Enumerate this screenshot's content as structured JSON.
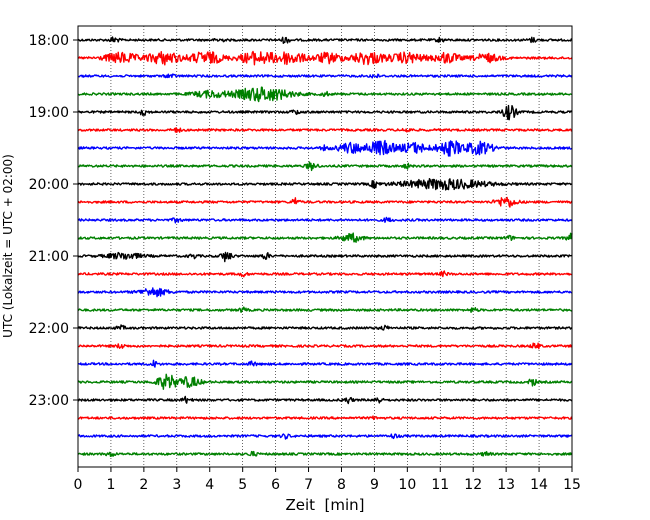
{
  "chart_data": {
    "type": "line",
    "title": "",
    "xlabel": "Zeit  [min]",
    "ylabel": "UTC (Lokalzeit = UTC + 02:00)",
    "xlim": [
      0,
      15
    ],
    "x_ticks": [
      0,
      1,
      2,
      3,
      4,
      5,
      6,
      7,
      8,
      9,
      10,
      11,
      12,
      13,
      14,
      15
    ],
    "y_ticks": [
      "18:00",
      "19:00",
      "20:00",
      "21:00",
      "22:00",
      "23:00"
    ],
    "trace_interval_min": 15,
    "grid": "vertical dotted at each minute",
    "colors": [
      "#000000",
      "#ff0000",
      "#0000ff",
      "#008000"
    ],
    "traces": [
      {
        "start": "18:00",
        "events": [
          {
            "t": 1.1,
            "amp": 3
          },
          {
            "t": 4.3,
            "amp": 2
          },
          {
            "t": 6.3,
            "amp": 3
          },
          {
            "t": 11.0,
            "amp": 2
          },
          {
            "t": 13.8,
            "amp": 2
          }
        ]
      },
      {
        "start": "18:15",
        "events": [
          {
            "t": 1.3,
            "amp": 5,
            "w": 0.5
          },
          {
            "t": 2.6,
            "amp": 6,
            "w": 0.5
          },
          {
            "t": 3.9,
            "amp": 6,
            "w": 0.5
          },
          {
            "t": 5.4,
            "amp": 6,
            "w": 0.5
          },
          {
            "t": 6.4,
            "amp": 6,
            "w": 0.5
          },
          {
            "t": 7.6,
            "amp": 5,
            "w": 0.4
          },
          {
            "t": 8.8,
            "amp": 6,
            "w": 0.5
          },
          {
            "t": 10.0,
            "amp": 5,
            "w": 0.5
          },
          {
            "t": 11.2,
            "amp": 5,
            "w": 0.4
          },
          {
            "t": 12.4,
            "amp": 4,
            "w": 0.4
          }
        ]
      },
      {
        "start": "18:30",
        "events": [
          {
            "t": 2.8,
            "amp": 2
          },
          {
            "t": 9.0,
            "amp": 2
          }
        ]
      },
      {
        "start": "18:45",
        "events": [
          {
            "t": 4.0,
            "amp": 3,
            "w": 0.5
          },
          {
            "t": 5.6,
            "amp": 7,
            "w": 0.8
          },
          {
            "t": 7.5,
            "amp": 2
          }
        ]
      },
      {
        "start": "19:00",
        "events": [
          {
            "t": 2.0,
            "amp": 3
          },
          {
            "t": 6.6,
            "amp": 2
          },
          {
            "t": 13.1,
            "amp": 7,
            "w": 0.2
          }
        ]
      },
      {
        "start": "19:15",
        "events": [
          {
            "t": 3.0,
            "amp": 2
          },
          {
            "t": 10.0,
            "amp": 2
          }
        ]
      },
      {
        "start": "19:30",
        "events": [
          {
            "t": 7.5,
            "amp": 2
          },
          {
            "t": 8.3,
            "amp": 5,
            "w": 0.4
          },
          {
            "t": 9.2,
            "amp": 7,
            "w": 0.4
          },
          {
            "t": 10.2,
            "amp": 5,
            "w": 0.4
          },
          {
            "t": 11.3,
            "amp": 7,
            "w": 0.4
          },
          {
            "t": 12.2,
            "amp": 6,
            "w": 0.4
          }
        ]
      },
      {
        "start": "19:45",
        "events": [
          {
            "t": 7.1,
            "amp": 4,
            "w": 0.15
          },
          {
            "t": 10.0,
            "amp": 2
          }
        ]
      },
      {
        "start": "20:00",
        "events": [
          {
            "t": 9.0,
            "amp": 3
          },
          {
            "t": 11.1,
            "amp": 5,
            "w": 1.2
          }
        ]
      },
      {
        "start": "20:15",
        "events": [
          {
            "t": 6.6,
            "amp": 4,
            "w": 0.1
          },
          {
            "t": 13.0,
            "amp": 5,
            "w": 0.3
          }
        ]
      },
      {
        "start": "20:30",
        "events": [
          {
            "t": 3.0,
            "amp": 2
          },
          {
            "t": 9.4,
            "amp": 2
          }
        ]
      },
      {
        "start": "20:45",
        "events": [
          {
            "t": 8.3,
            "amp": 4,
            "w": 0.3
          },
          {
            "t": 13.1,
            "amp": 2
          },
          {
            "t": 15.0,
            "amp": 4,
            "w": 0.15
          }
        ]
      },
      {
        "start": "21:00",
        "events": [
          {
            "t": 1.4,
            "amp": 3,
            "w": 0.5
          },
          {
            "t": 3.5,
            "amp": 2
          },
          {
            "t": 4.5,
            "amp": 5,
            "w": 0.15
          },
          {
            "t": 5.7,
            "amp": 3
          }
        ]
      },
      {
        "start": "21:15",
        "events": [
          {
            "t": 5.0,
            "amp": 2
          },
          {
            "t": 11.1,
            "amp": 2
          }
        ]
      },
      {
        "start": "21:30",
        "events": [
          {
            "t": 2.3,
            "amp": 4,
            "w": 0.4
          }
        ]
      },
      {
        "start": "21:45",
        "events": [
          {
            "t": 5.0,
            "amp": 2
          },
          {
            "t": 12.0,
            "amp": 2
          }
        ]
      },
      {
        "start": "22:00",
        "events": [
          {
            "t": 1.3,
            "amp": 2
          },
          {
            "t": 9.3,
            "amp": 2
          }
        ]
      },
      {
        "start": "22:15",
        "events": [
          {
            "t": 1.3,
            "amp": 2
          },
          {
            "t": 13.9,
            "amp": 3
          }
        ]
      },
      {
        "start": "22:30",
        "events": [
          {
            "t": 2.3,
            "amp": 3
          },
          {
            "t": 5.3,
            "amp": 2
          }
        ]
      },
      {
        "start": "22:45",
        "events": [
          {
            "t": 2.7,
            "amp": 7,
            "w": 0.3
          },
          {
            "t": 3.4,
            "amp": 5,
            "w": 0.3
          },
          {
            "t": 13.8,
            "amp": 4,
            "w": 0.1
          }
        ]
      },
      {
        "start": "23:00",
        "events": [
          {
            "t": 3.3,
            "amp": 3
          },
          {
            "t": 8.2,
            "amp": 3
          },
          {
            "t": 9.1,
            "amp": 3
          }
        ]
      },
      {
        "start": "23:15",
        "events": [
          {
            "t": 9.0,
            "amp": 1
          }
        ]
      },
      {
        "start": "23:30",
        "events": [
          {
            "t": 6.3,
            "amp": 2
          },
          {
            "t": 9.6,
            "amp": 2
          }
        ]
      },
      {
        "start": "23:45",
        "events": [
          {
            "t": 1.0,
            "amp": 2
          },
          {
            "t": 5.3,
            "amp": 2
          },
          {
            "t": 12.4,
            "amp": 2
          }
        ]
      }
    ]
  }
}
